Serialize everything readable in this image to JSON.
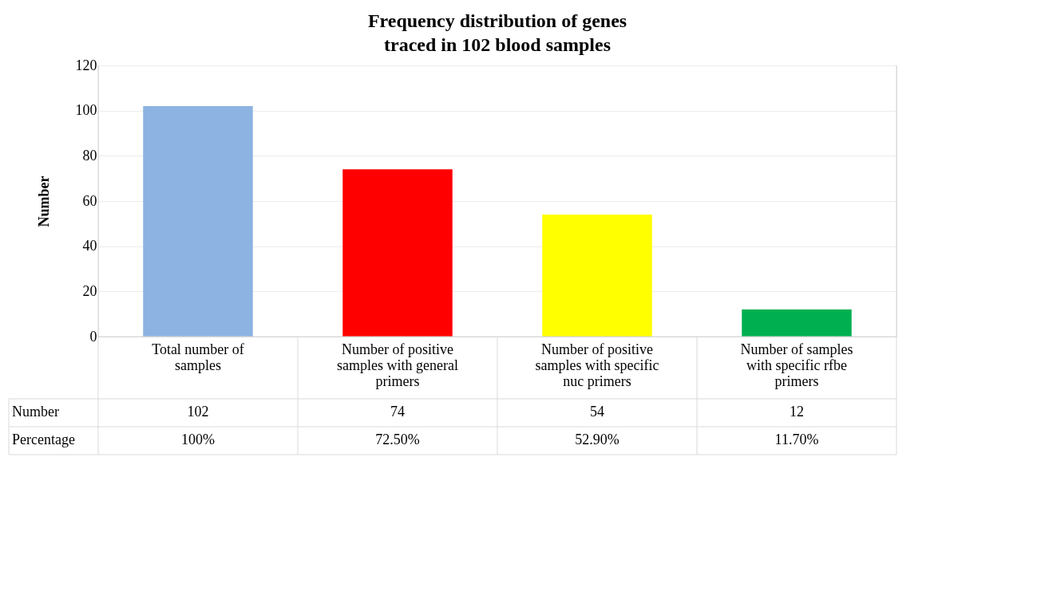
{
  "chart_data": {
    "type": "bar",
    "title": "Frequency distribution of genes traced in 102 blood samples",
    "ylabel": "Number",
    "categories": [
      "Total number of samples",
      "Number of positive samples with general primers",
      "Number of positive samples with specific nuc primers",
      "Number of samples with specific rfbe primers"
    ],
    "series": [
      {
        "name": "Number",
        "colors": [
          "#8db3e2",
          "#ff0000",
          "#ffff00",
          "#00b050"
        ],
        "values": [
          102,
          74,
          54,
          12
        ]
      }
    ],
    "data_labels": true,
    "annotations": [
      "Percentage",
      "100%",
      "72.50%",
      "52.90%",
      "11.70%"
    ],
    "ylim": [
      0,
      120
    ],
    "yticks": [
      0,
      20,
      40,
      60,
      80,
      100,
      120
    ],
    "grid": "y"
  }
}
